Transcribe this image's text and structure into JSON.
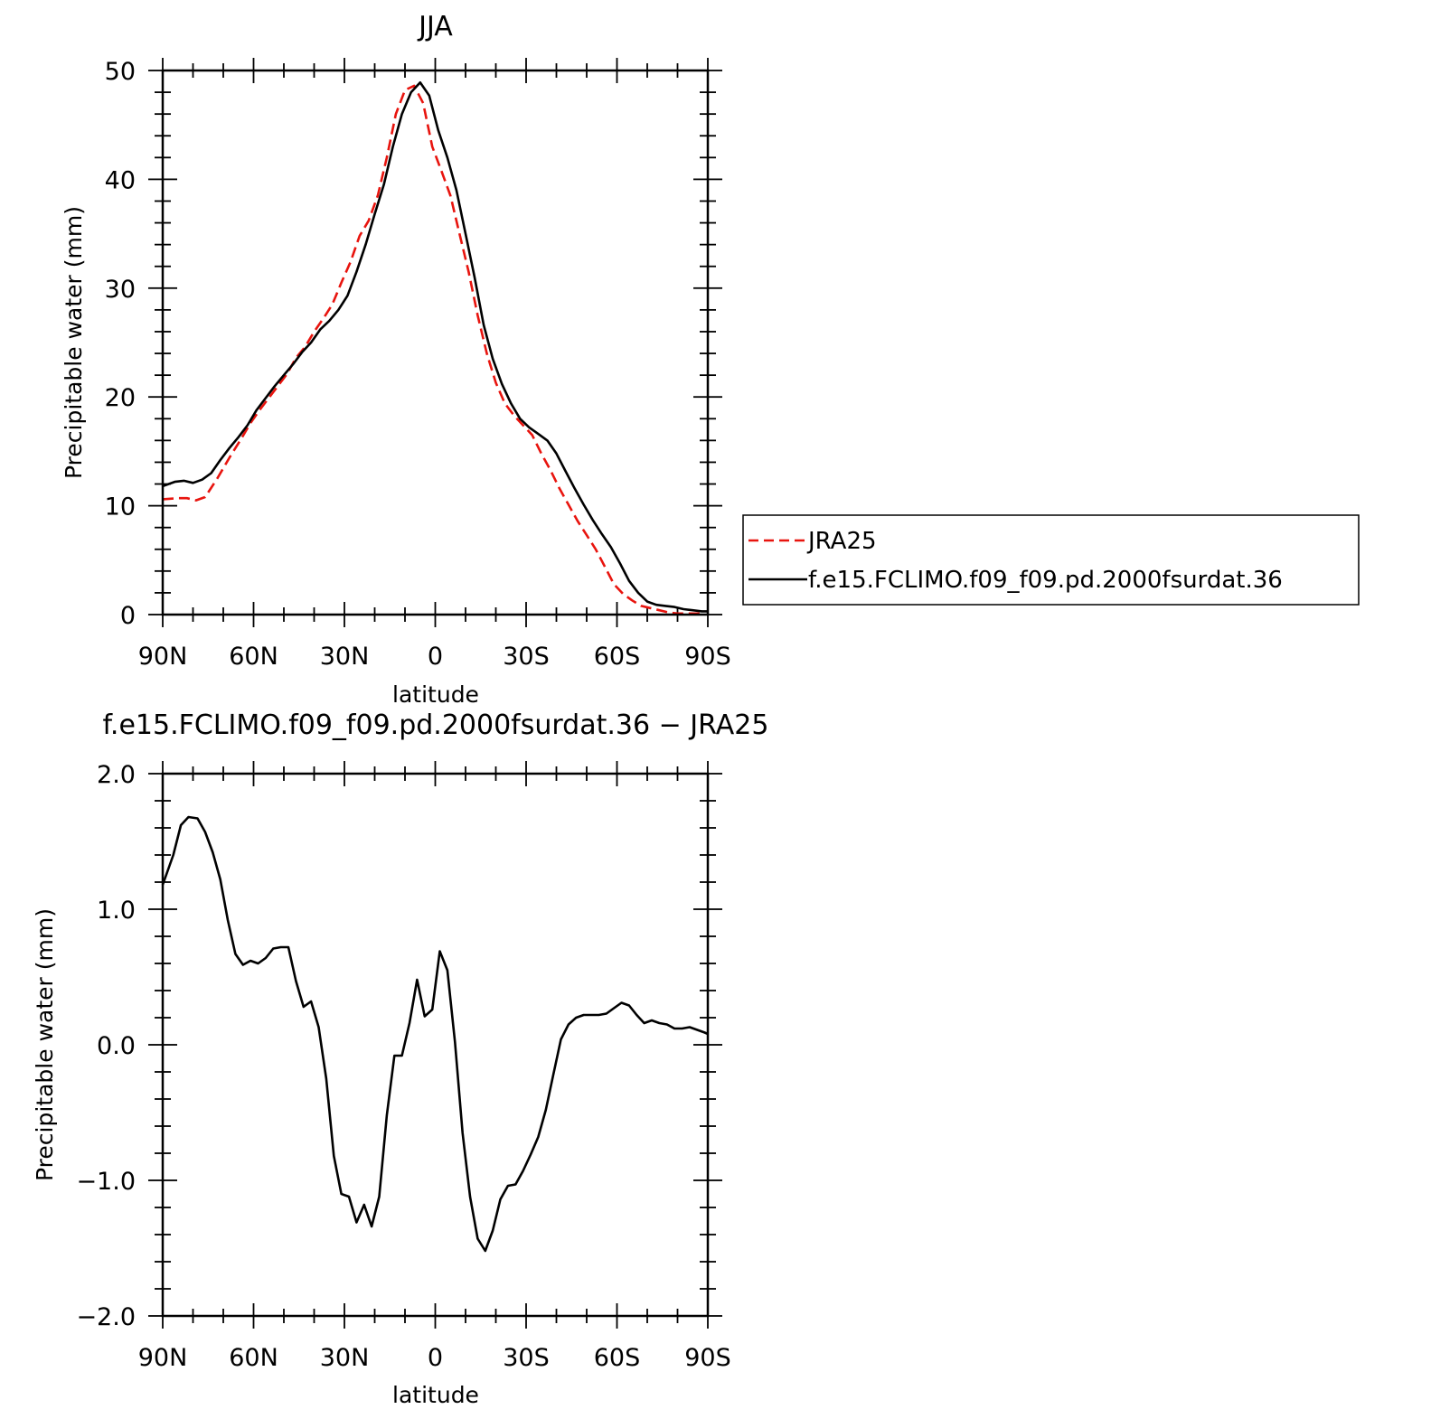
{
  "top_chart": {
    "title": "JJA",
    "xlabel": "latitude",
    "ylabel": "Precipitable water (mm)",
    "x_tick_labels": [
      "90N",
      "60N",
      "30N",
      "0",
      "30S",
      "60S",
      "90S"
    ],
    "y_tick_labels": [
      "0",
      "10",
      "20",
      "30",
      "40",
      "50"
    ],
    "legend": {
      "entries": [
        "JRA25",
        "f.e15.FCLIMO.f09_f09.pd.2000fsurdat.36"
      ]
    }
  },
  "bottom_chart": {
    "title": "f.e15.FCLIMO.f09_f09.pd.2000fsurdat.36 − JRA25",
    "xlabel": "latitude",
    "ylabel": "Precipitable water (mm)",
    "x_tick_labels": [
      "90N",
      "60N",
      "30N",
      "0",
      "30S",
      "60S",
      "90S"
    ],
    "y_tick_labels": [
      "−2.0",
      "−1.0",
      "0.0",
      "1.0",
      "2.0"
    ]
  },
  "colors": {
    "jra25": "#e8140e",
    "model": "#000000"
  },
  "chart_data": [
    {
      "type": "line",
      "title": "JJA",
      "xlabel": "latitude",
      "ylabel": "Precipitable water (mm)",
      "xlim": [
        90,
        -90
      ],
      "ylim": [
        0,
        50
      ],
      "series": [
        {
          "name": "JRA25",
          "style": "dashed",
          "x": [
            90,
            85,
            82,
            79,
            76,
            72,
            68,
            64,
            61,
            58,
            55,
            52,
            49,
            46,
            43,
            40,
            37,
            34,
            31,
            28,
            25,
            22,
            19,
            16,
            13,
            10,
            7,
            4,
            1,
            -2,
            -5,
            -8,
            -11,
            -14,
            -17,
            -20,
            -23,
            -26,
            -29,
            -32,
            -35,
            -38,
            -41,
            -44,
            -47,
            -50,
            -53,
            -56,
            -59,
            -62,
            -65,
            -68,
            -71,
            -74,
            -77,
            -80,
            -83,
            -86,
            -89
          ],
          "y": [
            10.6,
            10.7,
            10.7,
            10.5,
            10.8,
            12.5,
            14.4,
            16.2,
            17.6,
            18.8,
            19.9,
            21.0,
            22.1,
            23.6,
            24.6,
            26.0,
            27.2,
            28.5,
            30.5,
            32.4,
            34.8,
            36.2,
            38.5,
            42.0,
            46.0,
            48.2,
            48.6,
            47.0,
            43.0,
            40.8,
            38.5,
            35.0,
            31.5,
            27.5,
            24.0,
            21.3,
            19.4,
            18.3,
            17.4,
            16.5,
            14.8,
            13.3,
            11.6,
            10.1,
            8.6,
            7.3,
            6.0,
            4.4,
            2.8,
            1.9,
            1.3,
            0.8,
            0.6,
            0.4,
            0.2,
            0.1,
            0.1,
            0.1,
            0.1
          ]
        },
        {
          "name": "f.e15.FCLIMO.f09_f09.pd.2000fsurdat.36",
          "style": "solid",
          "x": [
            90,
            86,
            83,
            80,
            77,
            74,
            71,
            68,
            65,
            62,
            59,
            56,
            53,
            50,
            47,
            44,
            41,
            38,
            35,
            32,
            29,
            26,
            23,
            20,
            17,
            14,
            11,
            8,
            5,
            2,
            -1,
            -4,
            -7,
            -10,
            -13,
            -16,
            -19,
            -22,
            -25,
            -28,
            -31,
            -34,
            -37,
            -40,
            -43,
            -46,
            -49,
            -52,
            -55,
            -58,
            -61,
            -64,
            -67,
            -70,
            -73,
            -76,
            -79,
            -82,
            -85,
            -88,
            -90
          ],
          "y": [
            11.8,
            12.2,
            12.3,
            12.1,
            12.4,
            13.0,
            14.2,
            15.3,
            16.3,
            17.4,
            18.8,
            19.9,
            21.0,
            22.0,
            23.0,
            24.1,
            25.0,
            26.2,
            27.0,
            28.0,
            29.3,
            31.5,
            34.0,
            36.8,
            39.5,
            43.0,
            46.0,
            48.0,
            48.9,
            47.7,
            44.5,
            42.0,
            39.0,
            35.0,
            31.0,
            26.6,
            23.5,
            21.2,
            19.4,
            18.0,
            17.2,
            16.6,
            16.0,
            14.8,
            13.2,
            11.6,
            10.1,
            8.7,
            7.4,
            6.2,
            4.7,
            3.1,
            2.0,
            1.2,
            0.9,
            0.8,
            0.7,
            0.5,
            0.4,
            0.3,
            0.3
          ]
        }
      ]
    },
    {
      "type": "line",
      "title": "f.e15.FCLIMO.f09_f09.pd.2000fsurdat.36 − JRA25",
      "xlabel": "latitude",
      "ylabel": "Precipitable water (mm)",
      "xlim": [
        90,
        -90
      ],
      "ylim": [
        -2.0,
        2.0
      ],
      "series": [
        {
          "style": "solid",
          "x": [
            90,
            86.5,
            84,
            81.5,
            78.5,
            76,
            73.5,
            71,
            68.5,
            66,
            63.5,
            61,
            58.5,
            56,
            53.5,
            51,
            48.5,
            46,
            43.5,
            41,
            38.5,
            36,
            33.5,
            31,
            28.5,
            26,
            23.5,
            21,
            18.5,
            16,
            13.5,
            11,
            8.5,
            6,
            3.5,
            1,
            -1.5,
            -4,
            -6.5,
            -9,
            -11.5,
            -14,
            -16.5,
            -19,
            -21.5,
            -24,
            -26.5,
            -29,
            -31.5,
            -34,
            -36.5,
            -39,
            -41.5,
            -44,
            -46.5,
            -49,
            -51.5,
            -54,
            -56.5,
            -59,
            -61.5,
            -64,
            -66.5,
            -69,
            -71.5,
            -74,
            -76.5,
            -79,
            -81.5,
            -84,
            -86.5,
            -89,
            -90
          ],
          "y": [
            1.18,
            1.4,
            1.62,
            1.68,
            1.67,
            1.57,
            1.42,
            1.22,
            0.92,
            0.67,
            0.59,
            0.62,
            0.6,
            0.64,
            0.71,
            0.72,
            0.72,
            0.47,
            0.28,
            0.32,
            0.13,
            -0.25,
            -0.82,
            -1.1,
            -1.12,
            -1.31,
            -1.18,
            -1.34,
            -1.12,
            -0.52,
            -0.08,
            -0.08,
            0.16,
            0.48,
            0.21,
            0.26,
            0.69,
            0.55,
            0.02,
            -0.65,
            -1.12,
            -1.43,
            -1.52,
            -1.37,
            -1.14,
            -1.04,
            -1.03,
            -0.93,
            -0.81,
            -0.68,
            -0.48,
            -0.22,
            0.04,
            0.15,
            0.2,
            0.22,
            0.22,
            0.22,
            0.23,
            0.27,
            0.31,
            0.29,
            0.22,
            0.16,
            0.18,
            0.16,
            0.15,
            0.12,
            0.12,
            0.13,
            0.11,
            0.09,
            0.08
          ]
        }
      ]
    }
  ]
}
